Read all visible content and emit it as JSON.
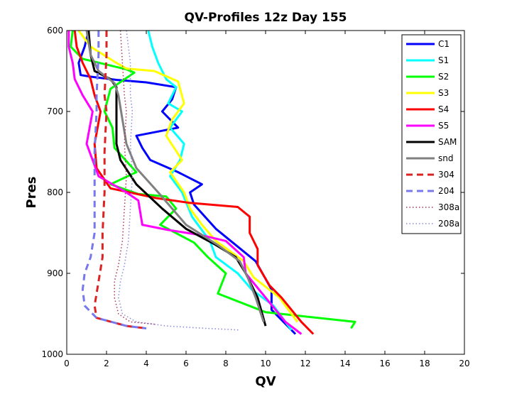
{
  "chart_data": {
    "type": "line",
    "title": "QV-Profiles 12z Day 155",
    "xlabel": "QV",
    "ylabel": "Pres",
    "xlim": [
      0,
      20
    ],
    "ylim": [
      600,
      1000
    ],
    "y_reversed": true,
    "x_ticks": [
      0,
      2,
      4,
      6,
      8,
      10,
      12,
      14,
      16,
      18,
      20
    ],
    "y_ticks": [
      600,
      700,
      800,
      900,
      1000
    ],
    "legend_position": "top-right",
    "grid": false,
    "series": [
      {
        "name": "C1",
        "color": "#0000ff",
        "style": "solid",
        "width": 3,
        "x": [
          1.1,
          0.9,
          0.6,
          0.7,
          1.2,
          2.5,
          4.0,
          5.5,
          5.3,
          4.8,
          5.6,
          3.5,
          3.8,
          4.2,
          5.6,
          6.8,
          6.2,
          6.4,
          7.5,
          9.5,
          10.3,
          10.3,
          11.5
        ],
        "y": [
          600,
          620,
          640,
          655,
          657,
          661,
          664,
          670,
          685,
          700,
          720,
          730,
          745,
          760,
          775,
          790,
          800,
          815,
          845,
          885,
          920,
          945,
          975
        ]
      },
      {
        "name": "S1",
        "color": "#00ffff",
        "style": "solid",
        "width": 3,
        "x": [
          4.1,
          4.3,
          4.6,
          5.0,
          5.5,
          5.1,
          5.8,
          5.2,
          5.9,
          5.7,
          5.2,
          5.8,
          6.3,
          7.2,
          7.5,
          8.6,
          9.3,
          10.4,
          11.3
        ],
        "y": [
          600,
          620,
          640,
          660,
          670,
          690,
          700,
          720,
          740,
          760,
          780,
          800,
          830,
          860,
          880,
          900,
          920,
          940,
          970
        ]
      },
      {
        "name": "S2",
        "color": "#00ff00",
        "style": "solid",
        "width": 3,
        "x": [
          0.3,
          0.2,
          0.8,
          3.0,
          3.4,
          2.2,
          1.9,
          2.3,
          2.4,
          3.5,
          2.2,
          3.6,
          5.0,
          5.5,
          4.7,
          6.4,
          7.1,
          8.0,
          7.6,
          10.0,
          14.5,
          14.3
        ],
        "y": [
          600,
          620,
          635,
          648,
          652,
          672,
          700,
          720,
          745,
          775,
          790,
          802,
          805,
          820,
          840,
          862,
          880,
          900,
          925,
          948,
          960,
          968
        ]
      },
      {
        "name": "S3",
        "color": "#ffff00",
        "style": "solid",
        "width": 3,
        "x": [
          0.6,
          1.2,
          2.5,
          3.0,
          4.4,
          5.6,
          5.9,
          5.3,
          5.0,
          5.8,
          5.2,
          5.9,
          6.2,
          6.8,
          7.5,
          8.9,
          9.4,
          10.7,
          11.6
        ],
        "y": [
          600,
          620,
          640,
          647,
          650,
          663,
          690,
          710,
          730,
          760,
          775,
          800,
          820,
          840,
          860,
          885,
          905,
          930,
          960
        ]
      },
      {
        "name": "S4",
        "color": "#ff0000",
        "style": "solid",
        "width": 3,
        "x": [
          0.4,
          0.5,
          0.8,
          1.2,
          1.4,
          1.7,
          1.4,
          1.5,
          2.2,
          4.5,
          6.2,
          8.6,
          9.2,
          9.2,
          9.6,
          9.6,
          10.2,
          10.8,
          11.8,
          12.4
        ],
        "y": [
          600,
          620,
          640,
          660,
          680,
          700,
          740,
          770,
          795,
          807,
          813,
          818,
          830,
          850,
          870,
          890,
          915,
          930,
          960,
          975
        ]
      },
      {
        "name": "S5",
        "color": "#ff00ff",
        "style": "solid",
        "width": 3,
        "x": [
          0.1,
          0.1,
          0.3,
          0.4,
          0.8,
          1.3,
          1.0,
          1.3,
          1.6,
          3.0,
          3.6,
          3.8,
          5.0,
          6.8,
          8.0,
          8.9,
          9.0,
          10.0,
          11.0,
          11.8
        ],
        "y": [
          600,
          620,
          640,
          660,
          680,
          700,
          740,
          760,
          780,
          800,
          810,
          840,
          846,
          853,
          860,
          880,
          900,
          930,
          960,
          975
        ]
      },
      {
        "name": "SAM",
        "color": "#000000",
        "style": "solid",
        "width": 3,
        "x": [
          1.1,
          1.2,
          1.4,
          2.2,
          2.5,
          2.5,
          2.5,
          2.7,
          3.5,
          4.8,
          6.0,
          7.5,
          8.5,
          9.0,
          9.6,
          10.0
        ],
        "y": [
          600,
          630,
          650,
          660,
          670,
          700,
          740,
          760,
          790,
          820,
          845,
          865,
          880,
          900,
          930,
          965
        ]
      },
      {
        "name": "snd",
        "color": "#808080",
        "style": "solid",
        "width": 3,
        "x": [
          1.0,
          1.2,
          1.6,
          2.4,
          2.6,
          2.8,
          3.0,
          3.5,
          4.6,
          6.0,
          7.6,
          8.7,
          9.1,
          9.5,
          9.9
        ],
        "y": [
          600,
          630,
          650,
          665,
          680,
          710,
          740,
          770,
          800,
          840,
          865,
          885,
          905,
          930,
          960
        ]
      },
      {
        "name": "304",
        "color": "#dd2222",
        "style": "dash",
        "width": 3,
        "x": [
          2.0,
          2.0,
          1.9,
          2.0,
          1.9,
          1.9,
          1.8,
          1.8,
          1.6,
          1.4,
          1.5,
          3.0,
          4.0
        ],
        "y": [
          600,
          630,
          680,
          700,
          750,
          800,
          850,
          880,
          910,
          940,
          955,
          965,
          968
        ]
      },
      {
        "name": "204",
        "color": "#7777ee",
        "style": "dash",
        "width": 3,
        "x": [
          1.6,
          1.6,
          1.5,
          1.5,
          1.4,
          1.4,
          1.4,
          1.2,
          0.9,
          0.8,
          0.9,
          1.5,
          3.0,
          4.0
        ],
        "y": [
          600,
          630,
          680,
          700,
          750,
          800,
          850,
          880,
          900,
          920,
          940,
          955,
          965,
          968
        ]
      },
      {
        "name": "308a",
        "color": "#aa3355",
        "style": "dot",
        "width": 1.5,
        "x": [
          2.7,
          2.8,
          2.9,
          3.0,
          2.9,
          3.0,
          2.9,
          2.8,
          2.6,
          2.4,
          2.4,
          2.6,
          3.2,
          4.5
        ],
        "y": [
          600,
          640,
          680,
          700,
          740,
          780,
          820,
          860,
          890,
          910,
          930,
          950,
          960,
          963
        ]
      },
      {
        "name": "208a",
        "color": "#8888dd",
        "style": "dot",
        "width": 1.5,
        "x": [
          3.0,
          3.2,
          3.2,
          3.3,
          3.2,
          3.3,
          3.2,
          3.1,
          2.9,
          2.7,
          2.6,
          2.8,
          3.5,
          5.0,
          7.0,
          8.7
        ],
        "y": [
          600,
          640,
          680,
          700,
          740,
          780,
          820,
          860,
          890,
          910,
          930,
          950,
          960,
          965,
          968,
          970
        ]
      }
    ]
  }
}
